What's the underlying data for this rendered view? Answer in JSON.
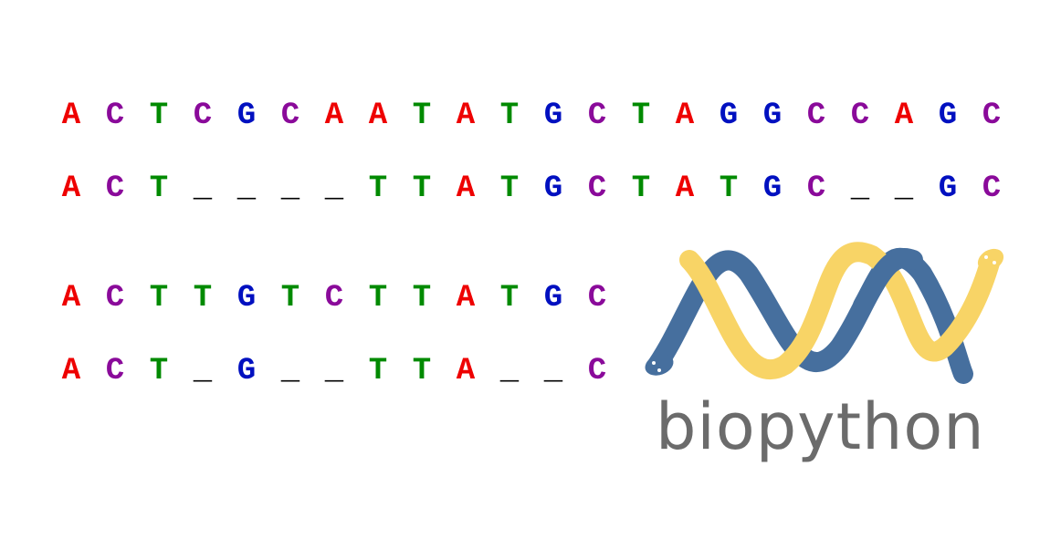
{
  "colors": {
    "A": "#ee0000",
    "C": "#8a0a9a",
    "G": "#0010c0",
    "T": "#008a00",
    "gap": "#000000",
    "snake_blue": "#466f9e",
    "snake_yellow": "#f8d466",
    "wordmark": "#6b6b6b"
  },
  "alignments": [
    {
      "name": "alignment-1",
      "rows": [
        "ACTCGCAATATGCTAGGCCAGC",
        "ACT____TTATGCTATGC__GC"
      ]
    },
    {
      "name": "alignment-2",
      "rows": [
        "ACTTGTCTTATGC",
        "ACT_G__TTA__C"
      ]
    }
  ],
  "logo": {
    "icon": "double-helix-snakes-icon",
    "wordmark": "biopython"
  }
}
